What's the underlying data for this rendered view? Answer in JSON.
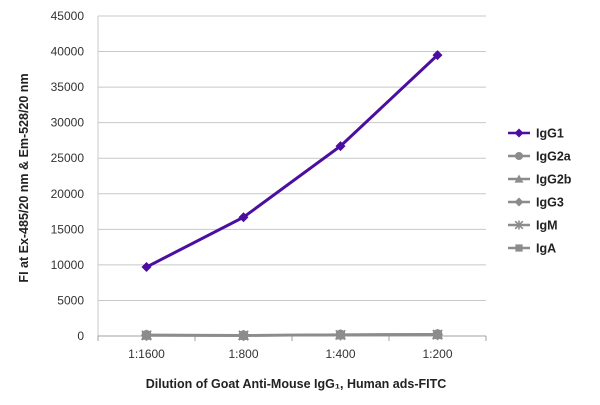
{
  "chart_data": {
    "type": "line",
    "title": "",
    "xlabel": "Dilution of Goat Anti-Mouse IgG₁, Human ads-FITC",
    "ylabel": "FI at Ex-485/20 nm & Em-528/20 nm",
    "categories": [
      "1:1600",
      "1:800",
      "1:400",
      "1:200"
    ],
    "ylim": [
      0,
      45000
    ],
    "yticks": [
      0,
      5000,
      10000,
      15000,
      20000,
      25000,
      30000,
      35000,
      40000,
      45000
    ],
    "grid": "horizontal",
    "legend_position": "right",
    "series": [
      {
        "name": "IgG1",
        "values": [
          9700,
          16700,
          26700,
          39500
        ],
        "color": "#4b0ea0",
        "marker": "diamond"
      },
      {
        "name": "IgG2a",
        "values": [
          150,
          100,
          200,
          250
        ],
        "color": "#8c8c8c",
        "marker": "circle"
      },
      {
        "name": "IgG2b",
        "values": [
          120,
          90,
          180,
          220
        ],
        "color": "#8c8c8c",
        "marker": "triangle"
      },
      {
        "name": "IgG3",
        "values": [
          100,
          80,
          160,
          200
        ],
        "color": "#8c8c8c",
        "marker": "diamond"
      },
      {
        "name": "IgM",
        "values": [
          90,
          70,
          150,
          190
        ],
        "color": "#8c8c8c",
        "marker": "star"
      },
      {
        "name": "IgA",
        "values": [
          80,
          60,
          140,
          180
        ],
        "color": "#8c8c8c",
        "marker": "square"
      }
    ]
  }
}
